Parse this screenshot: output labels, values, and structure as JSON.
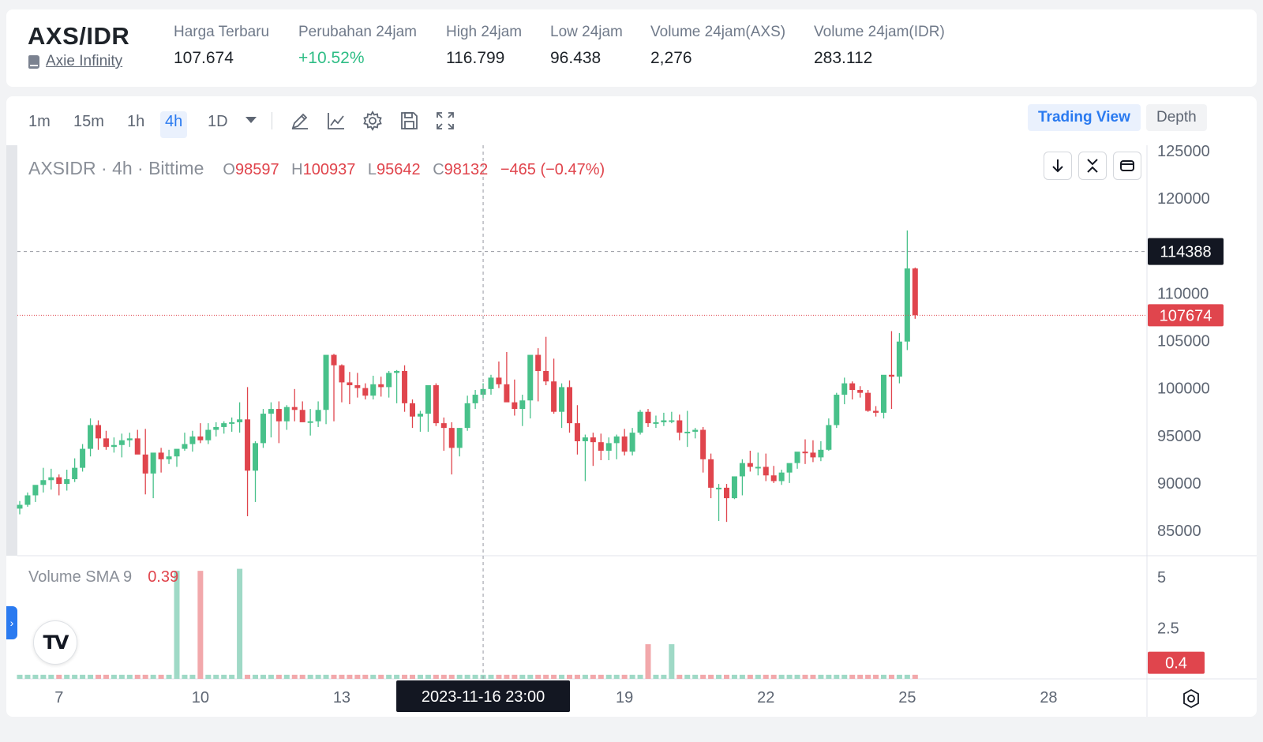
{
  "ticker": {
    "pair": "AXS/IDR",
    "coin_name": "Axie Infinity",
    "stats": [
      {
        "label": "Harga Terbaru",
        "value": "107.674",
        "positive": false
      },
      {
        "label": "Perubahan 24jam",
        "value": "+10.52%",
        "positive": true
      },
      {
        "label": "High 24jam",
        "value": "116.799",
        "positive": false
      },
      {
        "label": "Low 24jam",
        "value": "96.438",
        "positive": false
      },
      {
        "label": "Volume 24jam(AXS)",
        "value": "2,276",
        "positive": false
      },
      {
        "label": "Volume 24jam(IDR)",
        "value": "283.112",
        "positive": false
      }
    ]
  },
  "toolbar": {
    "timeframes": [
      "1m",
      "15m",
      "1h",
      "4h",
      "1D"
    ],
    "active_timeframe": "4h",
    "icons": [
      "pencil-icon",
      "indicator-icon",
      "gear-icon",
      "save-icon",
      "fullscreen-icon"
    ],
    "views": [
      "Trading View",
      "Depth"
    ],
    "active_view": "Trading View"
  },
  "legend": {
    "symbol": "AXSIDR · 4h · Bittime",
    "o_label": "O",
    "o": "98597",
    "h_label": "H",
    "h": "100937",
    "l_label": "L",
    "l": "95642",
    "c_label": "C",
    "c": "98132",
    "change": "−465 (−0.47%)"
  },
  "volume_legend": {
    "label": "Volume SMA 9",
    "value": "0.39"
  },
  "colors": {
    "up": "#48c18a",
    "down": "#e0454d",
    "up_vol": "#9fd9c6",
    "down_vol": "#f2a8ab",
    "accent": "#2a7af0"
  },
  "chart_data": {
    "type": "candlestick",
    "symbol": "AXSIDR",
    "interval": "4h",
    "ylim": [
      84000,
      126000
    ],
    "y_ticks": [
      125000,
      120000,
      110000,
      105000,
      100000,
      95000,
      90000,
      85000
    ],
    "x_ticks": [
      "7",
      "10",
      "13",
      "19",
      "22",
      "25",
      "28"
    ],
    "x_tick_positions": [
      5,
      23,
      41,
      77,
      95,
      113,
      131
    ],
    "crosshair": {
      "label": "2023-11-16   23:00",
      "index": 59,
      "price_label": "114388",
      "price": 114388
    },
    "last_price": {
      "label": "107674",
      "value": 107674
    },
    "volume_axis": {
      "ticks": [
        "5",
        "2.5"
      ],
      "tick_values": [
        5,
        2.5
      ],
      "ylim": [
        0,
        5.5
      ],
      "last_label": "0.4",
      "last_value": 0.4
    },
    "candles": {
      "open": [
        87300,
        87700,
        88700,
        89800,
        90300,
        90600,
        89900,
        90400,
        91600,
        93600,
        96100,
        94700,
        93800,
        94000,
        94500,
        94700,
        93000,
        91000,
        93200,
        92500,
        92800,
        93600,
        94100,
        94900,
        94500,
        95600,
        95900,
        96300,
        96400,
        96700,
        91300,
        94200,
        97300,
        97800,
        96500,
        98000,
        97700,
        96400,
        96500,
        97700,
        103500,
        102400,
        100600,
        100300,
        100000,
        99200,
        100400,
        100100,
        101600,
        101800,
        98400,
        97000,
        97300,
        100300,
        96300,
        95800,
        93700,
        95800,
        98400,
        99300,
        99900,
        101100,
        100400,
        98500,
        97800,
        98700,
        103500,
        101800,
        100700,
        97500,
        100100,
        96300,
        94400,
        94800,
        94300,
        93400,
        94200,
        94900,
        93300,
        95300,
        97500,
        96300,
        96400,
        96600,
        96600,
        95300,
        95400,
        95600,
        92500,
        89500,
        89500,
        88400,
        90700,
        92100,
        91700,
        91700,
        90800,
        90200,
        91100,
        92100,
        93300,
        93200,
        92700,
        93500,
        96100,
        99300,
        100500,
        99800,
        99500,
        97600,
        97400,
        101400,
        101200,
        104900,
        112600
      ],
      "high": [
        88100,
        89000,
        89700,
        91600,
        91500,
        90900,
        91400,
        92600,
        94100,
        96800,
        96600,
        95500,
        94800,
        95200,
        95300,
        95600,
        95700,
        91500,
        93700,
        93500,
        93500,
        95300,
        95500,
        96300,
        96300,
        96400,
        96500,
        96900,
        98500,
        100100,
        94400,
        97800,
        98500,
        98600,
        98200,
        99900,
        98600,
        97800,
        98600,
        100000,
        103600,
        102500,
        101700,
        101600,
        100500,
        101300,
        101200,
        101800,
        101900,
        102400,
        98800,
        97600,
        100200,
        100500,
        96900,
        96400,
        95800,
        99200,
        99800,
        100500,
        101400,
        102800,
        103800,
        100900,
        99300,
        99900,
        104200,
        105400,
        103100,
        100500,
        100800,
        98200,
        95100,
        95300,
        95200,
        94800,
        95100,
        95700,
        95800,
        97700,
        97800,
        97100,
        97400,
        97500,
        97200,
        97600,
        95800,
        95900,
        93100,
        89900,
        89900,
        90400,
        92500,
        93400,
        93200,
        93100,
        91800,
        91400,
        91900,
        92700,
        94600,
        94500,
        94400,
        96800,
        99500,
        101100,
        100700,
        100200,
        99800,
        98100,
        98800,
        106000,
        105800,
        116600,
        112700
      ],
      "low": [
        86700,
        87500,
        88000,
        89000,
        89300,
        88700,
        89200,
        90100,
        91200,
        92800,
        93500,
        93500,
        93200,
        92700,
        93800,
        94100,
        88800,
        88400,
        91100,
        92000,
        91700,
        93400,
        93300,
        94200,
        94100,
        94900,
        95200,
        95400,
        95300,
        86500,
        88000,
        93700,
        94800,
        94200,
        95600,
        96500,
        96600,
        95000,
        95900,
        96200,
        96500,
        98500,
        98300,
        99000,
        98800,
        98800,
        99100,
        99000,
        98400,
        97500,
        95800,
        95400,
        95400,
        96000,
        93400,
        90900,
        92800,
        95500,
        97800,
        98900,
        99300,
        100000,
        99600,
        97100,
        96000,
        96800,
        98600,
        100300,
        97300,
        95800,
        95300,
        93000,
        90200,
        91800,
        92400,
        92400,
        92500,
        92900,
        92900,
        95100,
        95900,
        95800,
        96000,
        96300,
        94500,
        93800,
        94700,
        91100,
        88400,
        86000,
        85900,
        88300,
        88700,
        91200,
        90800,
        90200,
        90000,
        89800,
        90000,
        91500,
        92000,
        92200,
        92300,
        93400,
        95800,
        98300,
        98800,
        99000,
        97500,
        97000,
        96800,
        97800,
        100500,
        104000,
        107300
      ],
      "close": [
        87700,
        88700,
        89800,
        90300,
        90600,
        89900,
        90400,
        91600,
        93600,
        96100,
        94700,
        93800,
        94000,
        94500,
        94700,
        93000,
        91000,
        93200,
        92500,
        92800,
        93600,
        94100,
        94900,
        94500,
        95600,
        95900,
        96300,
        96400,
        96700,
        91300,
        94200,
        97300,
        97800,
        96500,
        98000,
        97700,
        96400,
        96500,
        97700,
        103500,
        102400,
        100600,
        100300,
        100000,
        99200,
        100400,
        100100,
        101600,
        101800,
        98400,
        97000,
        97300,
        100300,
        96300,
        95800,
        93700,
        95800,
        98400,
        99300,
        99900,
        101100,
        100400,
        98500,
        97800,
        98700,
        103500,
        101800,
        100700,
        97500,
        100100,
        96300,
        94400,
        94800,
        94300,
        93400,
        94200,
        94900,
        93300,
        95300,
        97500,
        96300,
        96400,
        96600,
        96600,
        95300,
        95400,
        95600,
        92500,
        89500,
        89500,
        88400,
        90700,
        92100,
        91700,
        91700,
        90800,
        90200,
        91100,
        92100,
        93300,
        93200,
        92700,
        93500,
        96100,
        99300,
        100500,
        99800,
        99500,
        97600,
        97400,
        101400,
        101200,
        104900,
        112600,
        107674
      ]
    },
    "volume": [
      0.2,
      0.2,
      0.2,
      0.2,
      0.2,
      0.2,
      0.2,
      0.2,
      0.2,
      0.2,
      0.2,
      0.2,
      0.2,
      0.2,
      0.2,
      0.2,
      0.2,
      0.2,
      0.2,
      0.2,
      0.2,
      0.2,
      0.2,
      0.2,
      0.2,
      0.2,
      0.2,
      0.2,
      0.2,
      0.2,
      0.2,
      0.2,
      0.2,
      0.2,
      0.2,
      0.2,
      0.2,
      0.2,
      0.2,
      0.2,
      0.2,
      0.2,
      0.2,
      0.2,
      0.2,
      0.2,
      0.2,
      0.2,
      0.2,
      0.2,
      0.2,
      0.2,
      0.2,
      0.2,
      0.2,
      0.2,
      0.2,
      0.2,
      0.2,
      0.2,
      0.2,
      0.2,
      0.2,
      0.2,
      0.2,
      0.2,
      0.2,
      0.2,
      0.2,
      0.2,
      0.2,
      0.2,
      0.2,
      0.2,
      0.2,
      0.2,
      0.2,
      0.2,
      0.2,
      0.2,
      0.2,
      0.2,
      0.2,
      0.2,
      0.2,
      0.2,
      0.2,
      0.2,
      0.2,
      0.2,
      0.2,
      0.2,
      0.2,
      0.2,
      0.2,
      0.2,
      0.2,
      0.2,
      0.2,
      0.2,
      0.2,
      0.2,
      0.2,
      0.2,
      0.2,
      0.2,
      0.2,
      0.2,
      0.2,
      0.2,
      0.2,
      0.2,
      0.2,
      0.2,
      0.2
    ],
    "volume_spikes": [
      {
        "index": 20,
        "value": 5.3
      },
      {
        "index": 23,
        "value": 5.3
      },
      {
        "index": 28,
        "value": 5.4
      },
      {
        "index": 80,
        "value": 1.7
      },
      {
        "index": 83,
        "value": 1.7
      }
    ]
  }
}
